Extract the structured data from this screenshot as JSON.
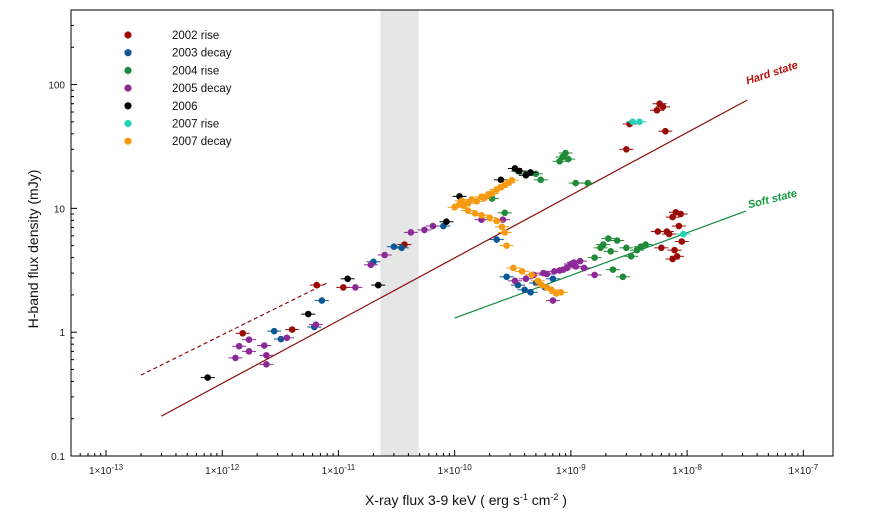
{
  "chart_data": {
    "type": "scatter",
    "xlabel_main": "X-ray flux 3-9 keV ( erg s",
    "xlabel_exp1": "-1",
    "xlabel_mid": " cm",
    "xlabel_exp2": "-2",
    "xlabel_end": " )",
    "ylabel": "H-band flux density (mJy)",
    "xscale": "log",
    "yscale": "log",
    "xlim": [
      5e-14,
      1.8e-07
    ],
    "ylim": [
      0.1,
      400
    ],
    "x_ticks": [
      {
        "value": 1e-13,
        "base": "1×10",
        "exp": "-13"
      },
      {
        "value": 1e-12,
        "base": "1×10",
        "exp": "-12"
      },
      {
        "value": 1e-11,
        "base": "1×10",
        "exp": "-11"
      },
      {
        "value": 1e-10,
        "base": "1×10",
        "exp": "-10"
      },
      {
        "value": 1e-09,
        "base": "1×10",
        "exp": "-9"
      },
      {
        "value": 1e-08,
        "base": "1×10",
        "exp": "-8"
      },
      {
        "value": 1e-07,
        "base": "1×10",
        "exp": "-7"
      }
    ],
    "y_ticks": [
      {
        "value": 0.1,
        "label": "0.1"
      },
      {
        "value": 1,
        "label": "1"
      },
      {
        "value": 10,
        "label": "10"
      },
      {
        "value": 100,
        "label": "100"
      }
    ],
    "shaded_band": {
      "x": [
        2.3e-11,
        4.9e-11
      ],
      "color": "#e6e6e6"
    },
    "fit_lines": [
      {
        "name": "Hard state",
        "color": "#8b0d0d",
        "style": "solid",
        "points": [
          [
            3e-13,
            0.21
          ],
          [
            3.3e-08,
            75
          ]
        ]
      },
      {
        "name": "Hard state extension",
        "color": "#8b0d0d",
        "style": "dashed",
        "points": [
          [
            2e-13,
            0.45
          ],
          [
            8e-12,
            2.5
          ]
        ]
      },
      {
        "name": "Soft state",
        "color": "#0e8a3c",
        "style": "solid",
        "points": [
          [
            1e-10,
            1.3
          ],
          [
            3.2e-08,
            9.5
          ]
        ]
      }
    ],
    "line_labels": [
      {
        "text": "Hard state",
        "color": "#b5120d",
        "at": [
          3.3e-08,
          100
        ],
        "angle": -18
      },
      {
        "text": "Soft state",
        "color": "#119a3a",
        "at": [
          3.4e-08,
          10
        ],
        "angle": -14
      }
    ],
    "series": [
      {
        "name": "2002 rise",
        "color": "#9b0c07",
        "points": [
          [
            1.5e-12,
            0.98
          ],
          [
            4e-12,
            1.05
          ],
          [
            6.5e-12,
            2.4
          ],
          [
            1.1e-11,
            2.3
          ],
          [
            3.7e-11,
            5.1
          ],
          [
            3e-09,
            30
          ],
          [
            3.2e-09,
            48
          ],
          [
            5.5e-09,
            62
          ],
          [
            5.8e-09,
            70
          ],
          [
            6.2e-09,
            66
          ],
          [
            6.5e-09,
            42
          ],
          [
            6.7e-09,
            6.5
          ],
          [
            7e-09,
            6.2
          ],
          [
            7.5e-09,
            8.5
          ],
          [
            8e-09,
            9.3
          ],
          [
            8.8e-09,
            9
          ],
          [
            8.5e-09,
            7.2
          ],
          [
            5.6e-09,
            6.5
          ],
          [
            6e-09,
            4.8
          ],
          [
            7.8e-09,
            4.6
          ],
          [
            8.2e-09,
            4.1
          ],
          [
            7.5e-09,
            3.9
          ],
          [
            9e-09,
            5.4
          ]
        ]
      },
      {
        "name": "2003 decay",
        "color": "#0b5795",
        "points": [
          [
            2.8e-12,
            1.02
          ],
          [
            3.2e-12,
            0.88
          ],
          [
            6.2e-12,
            1.1
          ],
          [
            7.2e-12,
            1.8
          ],
          [
            2e-11,
            3.7
          ],
          [
            3e-11,
            4.9
          ],
          [
            3.5e-11,
            4.8
          ],
          [
            8e-11,
            7.2
          ],
          [
            2.3e-10,
            5.6
          ],
          [
            2.8e-10,
            2.8
          ],
          [
            3.5e-10,
            2.4
          ],
          [
            4e-10,
            2.2
          ],
          [
            4.5e-10,
            2.1
          ],
          [
            5e-10,
            2.5
          ],
          [
            6e-10,
            2.3
          ],
          [
            7e-10,
            2.7
          ]
        ]
      },
      {
        "name": "2004 rise",
        "color": "#1f8a38",
        "points": [
          [
            2.1e-10,
            12
          ],
          [
            2.7e-10,
            9.2
          ],
          [
            3.5e-10,
            20
          ],
          [
            4.2e-10,
            19
          ],
          [
            5e-10,
            19
          ],
          [
            5.5e-10,
            17
          ],
          [
            8e-10,
            24
          ],
          [
            8.5e-10,
            26
          ],
          [
            9e-10,
            28
          ],
          [
            9.5e-10,
            25
          ],
          [
            1.1e-09,
            16
          ],
          [
            1.4e-09,
            16
          ],
          [
            1.6e-09,
            4
          ],
          [
            1.8e-09,
            4.8
          ],
          [
            1.9e-09,
            5.1
          ],
          [
            2.1e-09,
            5.7
          ],
          [
            2.2e-09,
            4.5
          ],
          [
            2.3e-09,
            3.2
          ],
          [
            2.5e-09,
            5.5
          ],
          [
            3e-09,
            4.8
          ],
          [
            3.3e-09,
            4.1
          ],
          [
            3.7e-09,
            4.6
          ],
          [
            4e-09,
            4.9
          ],
          [
            4.4e-09,
            5.1
          ],
          [
            2.8e-09,
            2.8
          ]
        ]
      },
      {
        "name": "2005 decay",
        "color": "#8b2a96",
        "points": [
          [
            1.3e-12,
            0.62
          ],
          [
            1.4e-12,
            0.77
          ],
          [
            1.7e-12,
            0.87
          ],
          [
            1.7e-12,
            0.7
          ],
          [
            2.3e-12,
            0.78
          ],
          [
            2.4e-12,
            0.65
          ],
          [
            2.4e-12,
            0.55
          ],
          [
            3.6e-12,
            0.9
          ],
          [
            6.4e-12,
            1.15
          ],
          [
            1.4e-11,
            2.3
          ],
          [
            1.9e-11,
            3.5
          ],
          [
            2.5e-11,
            4.2
          ],
          [
            4.2e-11,
            6.4
          ],
          [
            5.5e-11,
            6.7
          ],
          [
            6.5e-11,
            7.2
          ],
          [
            1.7e-10,
            8.1
          ],
          [
            2.6e-10,
            8.1
          ],
          [
            3.3e-10,
            2.6
          ],
          [
            4.1e-10,
            2.7
          ],
          [
            4.8e-10,
            2.9
          ],
          [
            5.8e-10,
            3
          ],
          [
            6.2e-10,
            2.95
          ],
          [
            7.2e-10,
            3.1
          ],
          [
            8e-10,
            3.15
          ],
          [
            8.6e-10,
            3.2
          ],
          [
            9.2e-10,
            3.3
          ],
          [
            1e-09,
            3.55
          ],
          [
            1.06e-09,
            3.65
          ],
          [
            1.1e-09,
            3.4
          ],
          [
            1.2e-09,
            3.75
          ],
          [
            1.3e-09,
            3.3
          ],
          [
            1.6e-09,
            2.9
          ],
          [
            7e-10,
            1.8
          ]
        ]
      },
      {
        "name": "2006",
        "color": "#000000",
        "points": [
          [
            7.5e-13,
            0.43
          ],
          [
            5.5e-12,
            1.4
          ],
          [
            1.2e-11,
            2.7
          ],
          [
            2.2e-11,
            2.4
          ],
          [
            8.5e-11,
            7.8
          ],
          [
            1.1e-10,
            12.5
          ],
          [
            2.5e-10,
            17
          ],
          [
            3.3e-10,
            21
          ],
          [
            3.6e-10,
            20
          ],
          [
            4.1e-10,
            18.5
          ],
          [
            4.5e-10,
            19.5
          ]
        ]
      },
      {
        "name": "2007 rise",
        "color": "#21d2b8",
        "points": [
          [
            3.4e-09,
            50
          ],
          [
            3.9e-09,
            50
          ],
          [
            9.3e-09,
            6.2
          ]
        ]
      },
      {
        "name": "2007 decay",
        "color": "#f79a10",
        "points": [
          [
            1e-10,
            10.2
          ],
          [
            1.1e-10,
            10.8
          ],
          [
            1.15e-10,
            11.5
          ],
          [
            1.2e-10,
            10.5
          ],
          [
            1.3e-10,
            11
          ],
          [
            1.4e-10,
            11.8
          ],
          [
            1.55e-10,
            11.4
          ],
          [
            1.7e-10,
            12.4
          ],
          [
            1.8e-10,
            12.1
          ],
          [
            1.95e-10,
            13
          ],
          [
            2.1e-10,
            13.2
          ],
          [
            2.3e-10,
            14.2
          ],
          [
            2.5e-10,
            14.8
          ],
          [
            2.7e-10,
            15.5
          ],
          [
            2.9e-10,
            16.1
          ],
          [
            3.1e-10,
            16.9
          ],
          [
            1.3e-10,
            9.6
          ],
          [
            1.5e-10,
            9.1
          ],
          [
            1.7e-10,
            8.8
          ],
          [
            2e-10,
            8.4
          ],
          [
            2.3e-10,
            7.9
          ],
          [
            2.55e-10,
            7.1
          ],
          [
            2.7e-10,
            6.4
          ],
          [
            2.8e-10,
            5
          ],
          [
            3.2e-10,
            3.3
          ],
          [
            3.8e-10,
            3.1
          ],
          [
            4.6e-10,
            2.9
          ],
          [
            5.2e-10,
            2.6
          ],
          [
            5.6e-10,
            2.4
          ],
          [
            6.2e-10,
            2.3
          ],
          [
            6.8e-10,
            2.2
          ],
          [
            7.5e-10,
            2.05
          ],
          [
            8.2e-10,
            2.1
          ]
        ]
      }
    ],
    "legend": {
      "placement": "top-left"
    }
  }
}
